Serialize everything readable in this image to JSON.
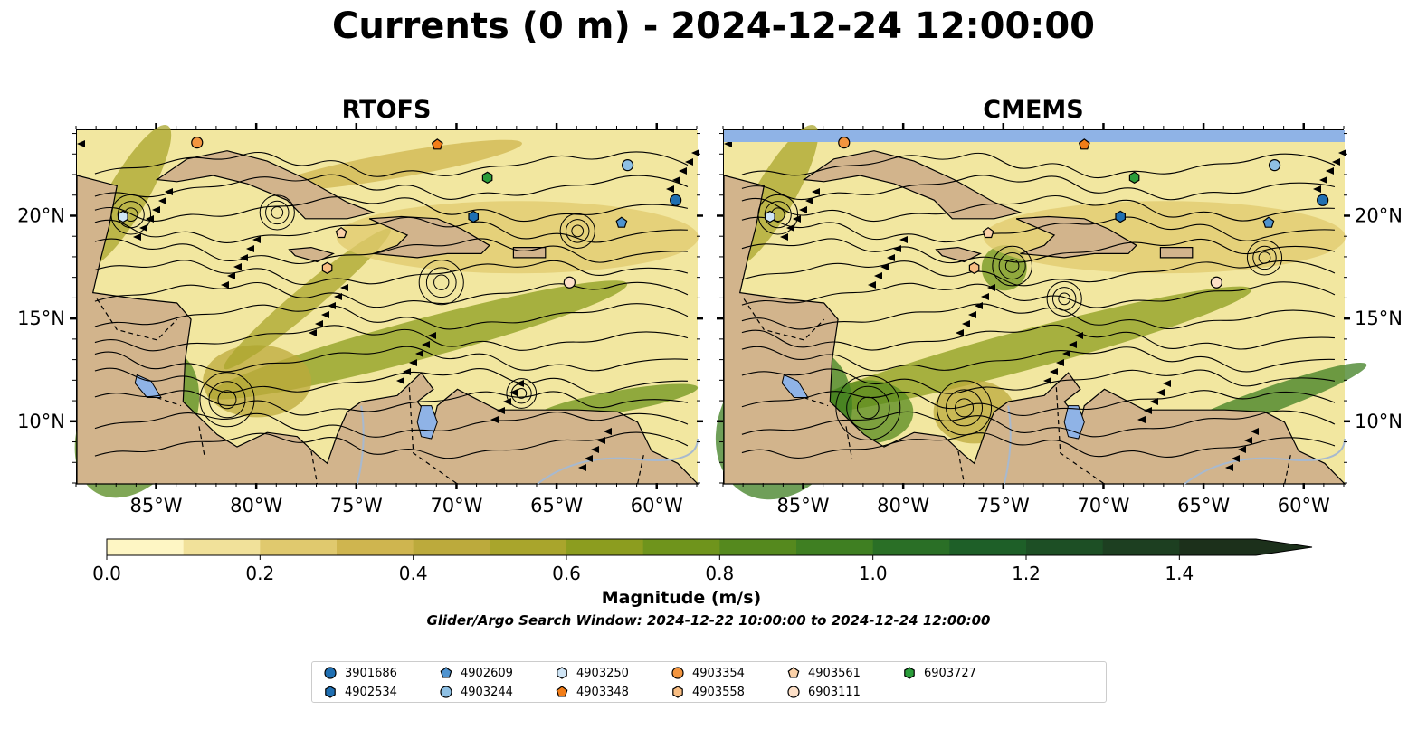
{
  "title": "Currents (0 m) - 2024-12-24 12:00:00",
  "panels": [
    {
      "title": "RTOFS"
    },
    {
      "title": "CMEMS"
    }
  ],
  "axes": {
    "lon_ticks": [
      "85°W",
      "80°W",
      "75°W",
      "70°W",
      "65°W",
      "60°W"
    ],
    "lat_ticks": [
      "20°N",
      "15°N",
      "10°N"
    ],
    "lon_range": [
      -89.0,
      -58.0
    ],
    "lat_range": [
      7.0,
      24.2
    ]
  },
  "colorbar": {
    "label": "Magnitude (m/s)",
    "tick_labels": [
      "0.0",
      "0.2",
      "0.4",
      "0.6",
      "0.8",
      "1.0",
      "1.2",
      "1.4"
    ],
    "range": [
      0.0,
      1.5
    ],
    "extend": "max",
    "colors": [
      "#fef6c4",
      "#f1e19a",
      "#e0c96e",
      "#cfb54f",
      "#bcaa3c",
      "#a9a52c",
      "#8c9d1f",
      "#6f941c",
      "#55891e",
      "#3f7f22",
      "#2a6f26",
      "#1e5f28",
      "#1d4f25",
      "#1d3f21",
      "#1c301b"
    ]
  },
  "search_window": "Glider/Argo Search Window: 2024-12-22 10:00:00 to 2024-12-24 12:00:00",
  "colors": {
    "land": "#d2b48c",
    "ocean_low": "#f2e7a0",
    "lake": "#8fb3e6",
    "river": "#a7b9cf",
    "cmems_nodata_band": "#8fb3e6"
  },
  "legend": [
    {
      "id": "3901686",
      "marker": "circle",
      "color": "#1f6fb2"
    },
    {
      "id": "4902534",
      "marker": "hexagon",
      "color": "#1f6fb2"
    },
    {
      "id": "4902609",
      "marker": "pentagon",
      "color": "#4f93cf"
    },
    {
      "id": "4903244",
      "marker": "circle",
      "color": "#8ec0e4"
    },
    {
      "id": "4903250",
      "marker": "hexagon",
      "color": "#cfe5f6"
    },
    {
      "id": "4903348",
      "marker": "pentagon",
      "color": "#f27d18"
    },
    {
      "id": "4903354",
      "marker": "circle",
      "color": "#f3953f"
    },
    {
      "id": "4903558",
      "marker": "hexagon",
      "color": "#f8bd82"
    },
    {
      "id": "4903561",
      "marker": "pentagon",
      "color": "#fbd1a8"
    },
    {
      "id": "6903111",
      "marker": "circle",
      "color": "#fde0c8"
    },
    {
      "id": "6903727",
      "marker": "hexagon",
      "color": "#2a9d3a"
    }
  ],
  "platforms": [
    {
      "id": "3901686",
      "lon": -59.1,
      "lat": 20.8
    },
    {
      "id": "4902534",
      "lon": -69.2,
      "lat": 20.0
    },
    {
      "id": "4902609",
      "lon": -61.8,
      "lat": 19.7
    },
    {
      "id": "4903244",
      "lon": -61.5,
      "lat": 22.5
    },
    {
      "id": "4903250",
      "lon": -86.7,
      "lat": 20.0
    },
    {
      "id": "4903348",
      "lon": -71.0,
      "lat": 23.5
    },
    {
      "id": "4903354",
      "lon": -83.0,
      "lat": 23.6
    },
    {
      "id": "4903558",
      "lon": -76.5,
      "lat": 17.5
    },
    {
      "id": "4903561",
      "lon": -75.8,
      "lat": 19.2
    },
    {
      "id": "6903111",
      "lon": -64.4,
      "lat": 16.8
    },
    {
      "id": "6903727",
      "lon": -68.5,
      "lat": 21.9
    }
  ]
}
